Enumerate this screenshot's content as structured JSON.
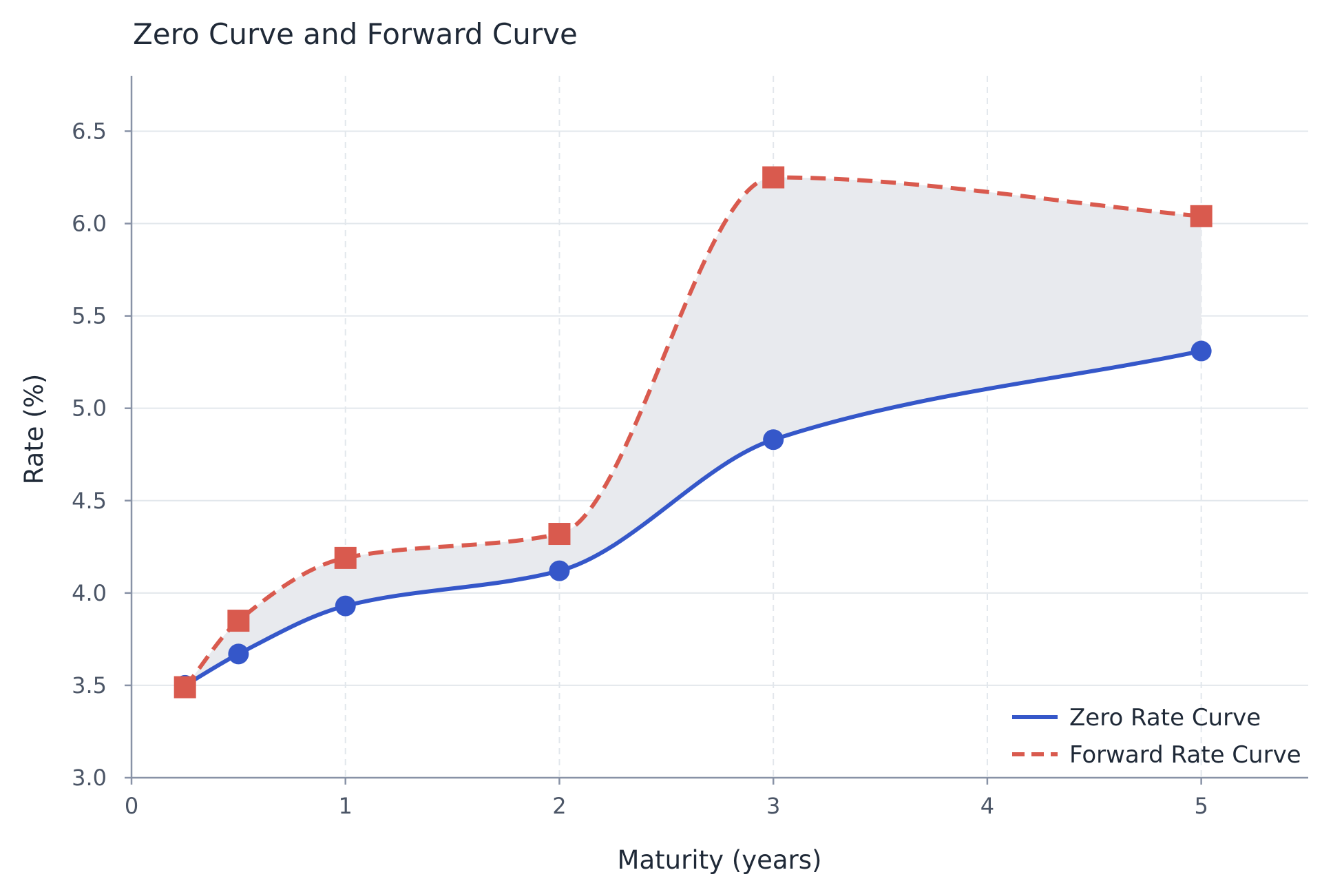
{
  "chart_data": {
    "type": "line",
    "title": "Zero Curve and Forward Curve",
    "xlabel": "Maturity (years)",
    "ylabel": "Rate (%)",
    "xlim": [
      0,
      5.5
    ],
    "ylim": [
      3.0,
      6.8
    ],
    "x_ticks": [
      0,
      1,
      2,
      3,
      4,
      5
    ],
    "x_tick_labels": [
      "0",
      "1",
      "2",
      "3",
      "4",
      "5"
    ],
    "y_ticks": [
      3.0,
      3.5,
      4.0,
      4.5,
      5.0,
      5.5,
      6.0,
      6.5
    ],
    "y_tick_labels": [
      "3.0",
      "3.5",
      "4.0",
      "4.5",
      "5.0",
      "5.5",
      "6.0",
      "6.5"
    ],
    "grid": true,
    "legend_position": "bottom-right",
    "shaded_region_between_series": true,
    "series": [
      {
        "name": "Zero Rate Curve",
        "style": "solid",
        "marker": "circle",
        "color": "#3557c9",
        "x": [
          0.25,
          0.5,
          1,
          2,
          3,
          5
        ],
        "y": [
          3.5,
          3.67,
          3.93,
          4.12,
          4.83,
          5.31
        ]
      },
      {
        "name": "Forward Rate Curve",
        "style": "dashed",
        "marker": "square",
        "color": "#d95a4e",
        "x": [
          0.25,
          0.5,
          1,
          2,
          3,
          5
        ],
        "y": [
          3.49,
          3.85,
          4.19,
          4.32,
          6.25,
          6.04
        ]
      }
    ],
    "colors": {
      "fill": "#e8eaee",
      "grid": "#e2e7ec",
      "axis": "#8892a6"
    }
  }
}
